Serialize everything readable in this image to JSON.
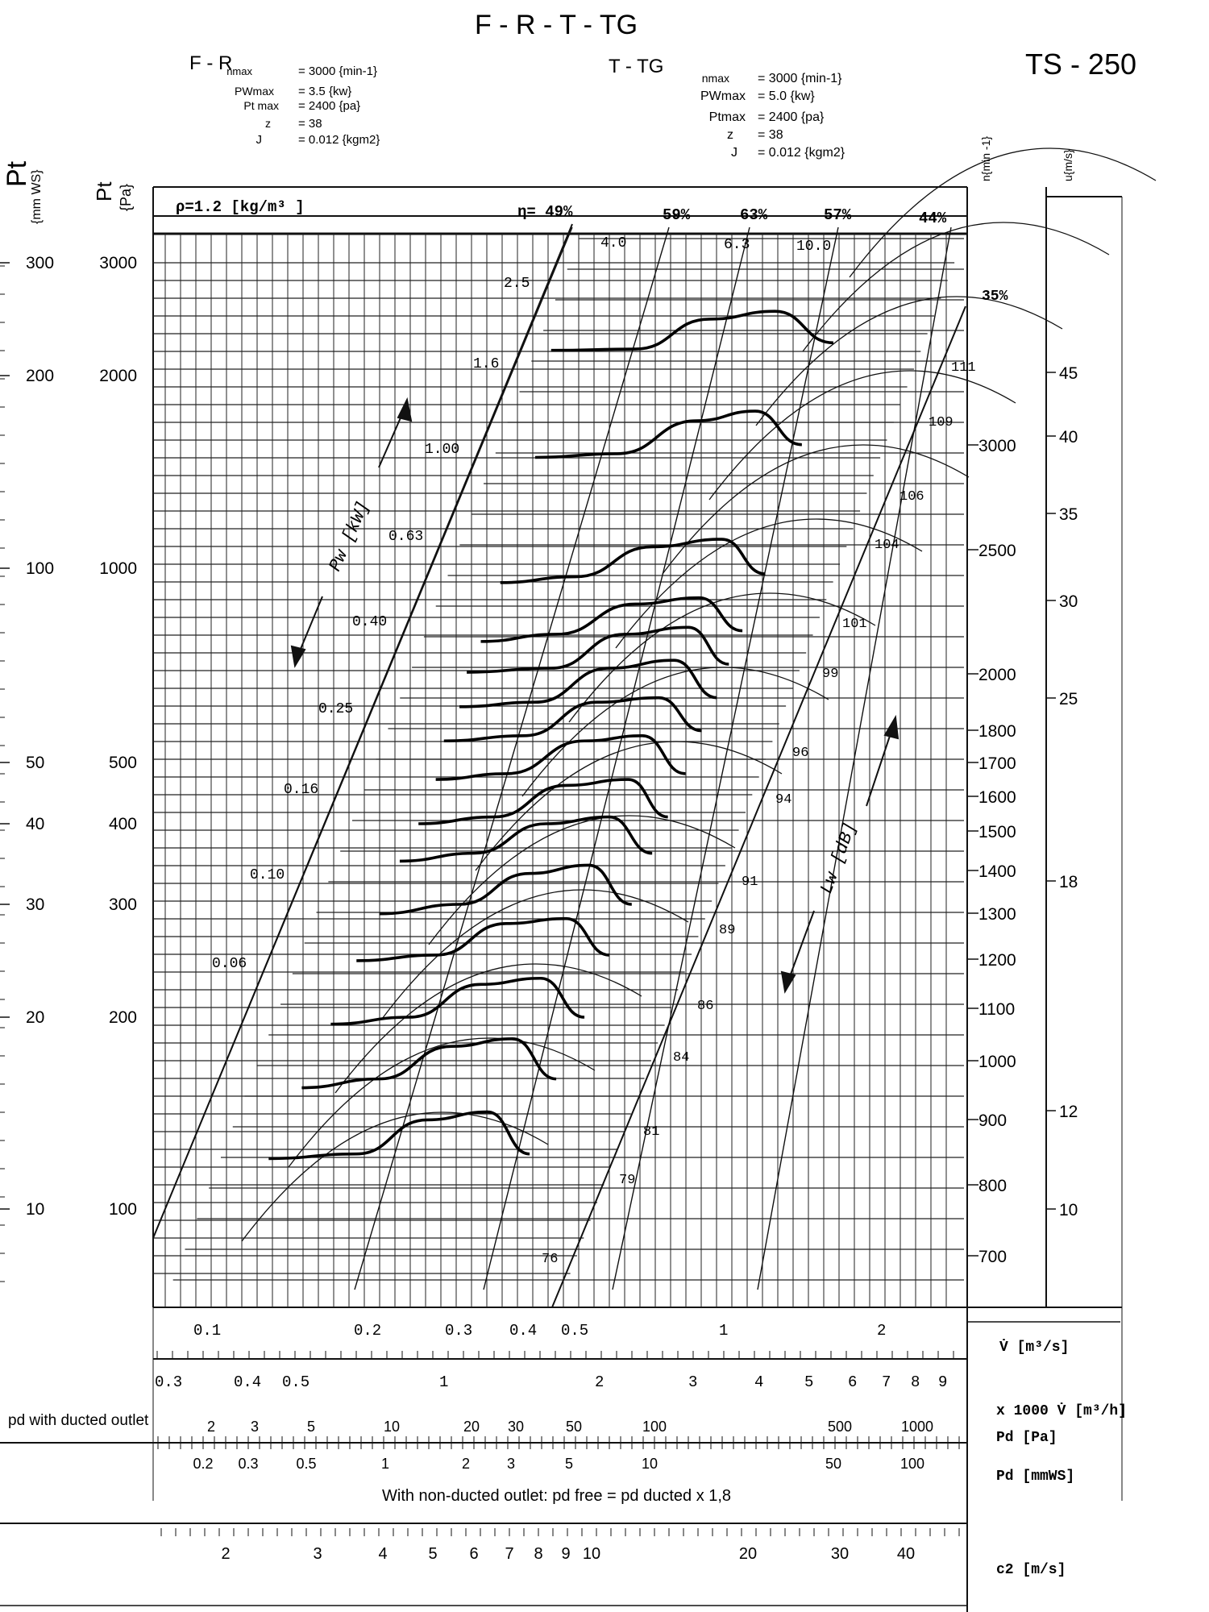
{
  "header": {
    "title": "F - R - T - TG",
    "model": "TS - 250",
    "spec_fr": {
      "label": "F - R",
      "rows": [
        {
          "k": "nmax",
          "v": "= 3000 {min-1}"
        },
        {
          "k": "PWmax",
          "v": "= 3.5 {kw}"
        },
        {
          "k": "Pt max",
          "v": "= 2400 {pa}"
        },
        {
          "k": "z",
          "v": "= 38"
        },
        {
          "k": "J",
          "v": "= 0.012 {kgm2}"
        }
      ]
    },
    "spec_ttg": {
      "label": "T - TG",
      "rows": [
        {
          "k": "nmax",
          "v": "= 3000 {min-1}"
        },
        {
          "k": "PWmax",
          "v": "= 5.0 {kw}"
        },
        {
          "k": "Ptmax",
          "v": "= 2400 {pa}"
        },
        {
          "k": "z",
          "v": "= 38"
        },
        {
          "k": "J",
          "v": "= 0.012 {kgm2}"
        }
      ]
    }
  },
  "chart_data": {
    "type": "line",
    "title": "F - R - T - TG",
    "density_label": "ρ=1.2 [kg/m³ ]",
    "axes": {
      "pt_mmws": {
        "label": "Pt",
        "unit": "{mm WS}",
        "ticks": [
          "300",
          "200",
          "100",
          "50",
          "40",
          "30",
          "20",
          "10"
        ],
        "values": [
          300,
          200,
          100,
          50,
          40,
          30,
          20,
          10
        ]
      },
      "pt_pa": {
        "label": "Pt",
        "unit": "{Pa}",
        "ticks": [
          "3000",
          "2000",
          "1000",
          "500",
          "400",
          "300",
          "200",
          "100"
        ],
        "values": [
          3000,
          2000,
          1000,
          500,
          400,
          300,
          200,
          100
        ]
      },
      "speed": {
        "label": "n{min -1}",
        "ticks": [
          "3000",
          "2500",
          "2000",
          "1800",
          "1700",
          "1600",
          "1500",
          "1400",
          "1300",
          "1200",
          "1100",
          "1000",
          "900",
          "800",
          "700"
        ],
        "values": [
          3000,
          2500,
          2000,
          1800,
          1700,
          1600,
          1500,
          1400,
          1300,
          1200,
          1100,
          1000,
          900,
          800,
          700
        ]
      },
      "velocity": {
        "label": "u{m/s}",
        "ticks": [
          "45",
          "40",
          "35",
          "30",
          "25",
          "18",
          "12",
          "10"
        ],
        "values": [
          45,
          40,
          35,
          30,
          25,
          18,
          12,
          10
        ]
      },
      "flow_m3s": {
        "label": "V̇  [m³/s]",
        "ticks": [
          "0.1",
          "0.2",
          "0.3",
          "0.4",
          "0.5",
          "1",
          "2"
        ],
        "values": [
          0.1,
          0.2,
          0.3,
          0.4,
          0.5,
          1,
          2
        ]
      },
      "flow_m3h": {
        "label": "x 1000 V̇  [m³/h]",
        "ticks": [
          "0.3",
          "0.4",
          "0.5",
          "1",
          "2",
          "3",
          "4",
          "5",
          "6",
          "7",
          "8",
          "9"
        ],
        "values": [
          0.3,
          0.4,
          0.5,
          1,
          2,
          3,
          4,
          5,
          6,
          7,
          8,
          9
        ]
      },
      "pd_pa": {
        "label": "Pd  [Pa]",
        "ticks": [
          "2",
          "3",
          "5",
          "10",
          "20",
          "30",
          "50",
          "100",
          "500",
          "1000"
        ],
        "values": [
          2,
          3,
          5,
          10,
          20,
          30,
          50,
          100,
          500,
          1000
        ]
      },
      "pd_mmws": {
        "label": "Pd  [mmWS]",
        "ticks": [
          "0.2",
          "0.3",
          "0.5",
          "1",
          "2",
          "3",
          "5",
          "10",
          "50",
          "100"
        ],
        "values": [
          0.2,
          0.3,
          0.5,
          1,
          2,
          3,
          5,
          10,
          50,
          100
        ]
      },
      "c2": {
        "label": "c2  [m/s]",
        "ticks": [
          "2",
          "3",
          "4",
          "5",
          "6",
          "7",
          "8",
          "9",
          "10",
          "20",
          "30",
          "40"
        ],
        "values": [
          2,
          3,
          4,
          5,
          6,
          7,
          8,
          9,
          10,
          20,
          30,
          40
        ]
      }
    },
    "efficiency_labels": [
      "η= 49%",
      "59%",
      "63%",
      "57%",
      "44%",
      "35%"
    ],
    "power_labels": [
      "4.0",
      "6.3",
      "10.0",
      "2.5",
      "1.6",
      "1.00",
      "0.63",
      "0.40",
      "0.25",
      "0.16",
      "0.10",
      "0.06"
    ],
    "sound_labels": [
      "111",
      "109",
      "106",
      "104",
      "101",
      "99",
      "96",
      "94",
      "91",
      "89",
      "86",
      "84",
      "81",
      "79",
      "76"
    ],
    "annotations": {
      "power": "Pw [kW]",
      "sound": "Lw [dB]",
      "pd_note": "pd with ducted outlet",
      "non_ducted": "With non-ducted outlet: pd free = pd ducted x 1,8"
    },
    "fan_curves": [
      {
        "rpm": 3000,
        "points": [
          [
            0.45,
            2190
          ],
          [
            0.65,
            2200
          ],
          [
            0.9,
            2450
          ],
          [
            1.2,
            2520
          ],
          [
            1.55,
            2250
          ]
        ]
      },
      {
        "rpm": 2500,
        "points": [
          [
            0.42,
            1490
          ],
          [
            0.6,
            1510
          ],
          [
            0.85,
            1700
          ],
          [
            1.1,
            1760
          ],
          [
            1.35,
            1560
          ]
        ]
      },
      {
        "rpm": 2000,
        "points": [
          [
            0.36,
            950
          ],
          [
            0.5,
            970
          ],
          [
            0.7,
            1080
          ],
          [
            0.95,
            1110
          ],
          [
            1.15,
            980
          ]
        ]
      },
      {
        "rpm": 1800,
        "points": [
          [
            0.33,
            770
          ],
          [
            0.46,
            790
          ],
          [
            0.65,
            880
          ],
          [
            0.86,
            900
          ],
          [
            1.04,
            800
          ]
        ]
      },
      {
        "rpm": 1700,
        "points": [
          [
            0.31,
            690
          ],
          [
            0.45,
            700
          ],
          [
            0.62,
            790
          ],
          [
            0.82,
            810
          ],
          [
            0.98,
            710
          ]
        ]
      },
      {
        "rpm": 1600,
        "points": [
          [
            0.3,
            610
          ],
          [
            0.42,
            620
          ],
          [
            0.58,
            700
          ],
          [
            0.77,
            720
          ],
          [
            0.93,
            630
          ]
        ]
      },
      {
        "rpm": 1500,
        "points": [
          [
            0.28,
            540
          ],
          [
            0.4,
            550
          ],
          [
            0.55,
            620
          ],
          [
            0.72,
            630
          ],
          [
            0.87,
            560
          ]
        ]
      },
      {
        "rpm": 1400,
        "points": [
          [
            0.27,
            470
          ],
          [
            0.37,
            480
          ],
          [
            0.52,
            540
          ],
          [
            0.67,
            550
          ],
          [
            0.81,
            480
          ]
        ]
      },
      {
        "rpm": 1300,
        "points": [
          [
            0.25,
            400
          ],
          [
            0.35,
            410
          ],
          [
            0.48,
            460
          ],
          [
            0.63,
            470
          ],
          [
            0.75,
            410
          ]
        ]
      },
      {
        "rpm": 1200,
        "points": [
          [
            0.23,
            350
          ],
          [
            0.32,
            360
          ],
          [
            0.44,
            400
          ],
          [
            0.58,
            410
          ],
          [
            0.7,
            360
          ]
        ]
      },
      {
        "rpm": 1100,
        "points": [
          [
            0.21,
            290
          ],
          [
            0.3,
            300
          ],
          [
            0.41,
            335
          ],
          [
            0.53,
            345
          ],
          [
            0.64,
            300
          ]
        ]
      },
      {
        "rpm": 1000,
        "points": [
          [
            0.19,
            245
          ],
          [
            0.27,
            250
          ],
          [
            0.37,
            280
          ],
          [
            0.48,
            285
          ],
          [
            0.58,
            250
          ]
        ]
      },
      {
        "rpm": 900,
        "points": [
          [
            0.17,
            195
          ],
          [
            0.24,
            200
          ],
          [
            0.33,
            225
          ],
          [
            0.43,
            230
          ],
          [
            0.52,
            200
          ]
        ]
      },
      {
        "rpm": 800,
        "points": [
          [
            0.15,
            155
          ],
          [
            0.21,
            160
          ],
          [
            0.29,
            180
          ],
          [
            0.38,
            185
          ],
          [
            0.46,
            160
          ]
        ]
      },
      {
        "rpm": 700,
        "points": [
          [
            0.13,
            120
          ],
          [
            0.19,
            122
          ],
          [
            0.26,
            138
          ],
          [
            0.34,
            142
          ],
          [
            0.41,
            122
          ]
        ]
      }
    ]
  }
}
